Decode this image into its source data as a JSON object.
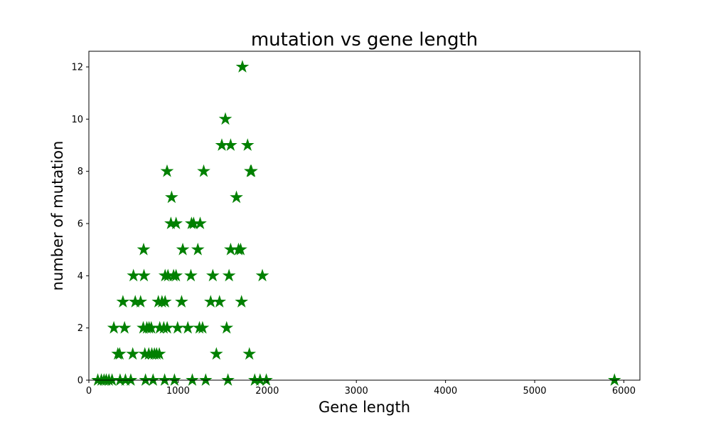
{
  "chart_data": {
    "type": "scatter",
    "title": "mutation vs gene length",
    "xlabel": "Gene length",
    "ylabel": "number of mutation",
    "xlim": [
      0,
      6180
    ],
    "ylim": [
      0,
      12.6
    ],
    "xticks": [
      0,
      1000,
      2000,
      3000,
      4000,
      5000,
      6000
    ],
    "yticks": [
      0,
      2,
      4,
      6,
      8,
      10,
      12
    ],
    "marker": "star",
    "color": "#008000",
    "grid": false,
    "points": [
      [
        1722,
        12
      ],
      [
        1531,
        10
      ],
      [
        1491,
        9
      ],
      [
        1590,
        9
      ],
      [
        1780,
        9
      ],
      [
        877,
        8
      ],
      [
        1288,
        8
      ],
      [
        1813,
        8
      ],
      [
        1822,
        8
      ],
      [
        928,
        7
      ],
      [
        1655,
        7
      ],
      [
        920,
        6
      ],
      [
        978,
        6
      ],
      [
        1151,
        6
      ],
      [
        1175,
        6
      ],
      [
        1248,
        6
      ],
      [
        614,
        5
      ],
      [
        1053,
        5
      ],
      [
        1222,
        5
      ],
      [
        1590,
        5
      ],
      [
        1678,
        5
      ],
      [
        1702,
        5
      ],
      [
        500,
        4
      ],
      [
        618,
        4
      ],
      [
        855,
        4
      ],
      [
        887,
        4
      ],
      [
        950,
        4
      ],
      [
        978,
        4
      ],
      [
        1144,
        4
      ],
      [
        1390,
        4
      ],
      [
        1572,
        4
      ],
      [
        1946,
        4
      ],
      [
        382,
        3
      ],
      [
        520,
        3
      ],
      [
        580,
        3
      ],
      [
        779,
        3
      ],
      [
        820,
        3
      ],
      [
        855,
        3
      ],
      [
        1040,
        3
      ],
      [
        1366,
        3
      ],
      [
        1465,
        3
      ],
      [
        1712,
        3
      ],
      [
        280,
        2
      ],
      [
        400,
        2
      ],
      [
        610,
        2
      ],
      [
        650,
        2
      ],
      [
        675,
        2
      ],
      [
        700,
        2
      ],
      [
        795,
        2
      ],
      [
        840,
        2
      ],
      [
        878,
        2
      ],
      [
        995,
        2
      ],
      [
        1110,
        2
      ],
      [
        1240,
        2
      ],
      [
        1275,
        2
      ],
      [
        1545,
        2
      ],
      [
        325,
        1
      ],
      [
        345,
        1
      ],
      [
        492,
        1
      ],
      [
        628,
        1
      ],
      [
        672,
        1
      ],
      [
        706,
        1
      ],
      [
        735,
        1
      ],
      [
        760,
        1
      ],
      [
        790,
        1
      ],
      [
        1430,
        1
      ],
      [
        1800,
        1
      ],
      [
        100,
        0
      ],
      [
        140,
        0
      ],
      [
        170,
        0
      ],
      [
        195,
        0
      ],
      [
        225,
        0
      ],
      [
        260,
        0
      ],
      [
        350,
        0
      ],
      [
        410,
        0
      ],
      [
        470,
        0
      ],
      [
        635,
        0
      ],
      [
        720,
        0
      ],
      [
        850,
        0
      ],
      [
        960,
        0
      ],
      [
        1160,
        0
      ],
      [
        1310,
        0
      ],
      [
        1560,
        0
      ],
      [
        1860,
        0
      ],
      [
        1920,
        0
      ],
      [
        1990,
        0
      ],
      [
        5895,
        0
      ]
    ]
  }
}
